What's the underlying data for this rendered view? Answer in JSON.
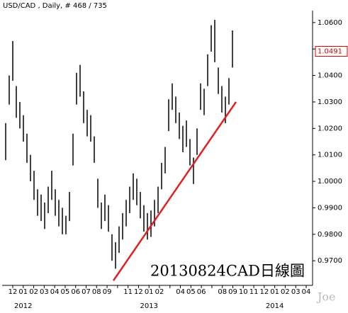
{
  "chart_data": {
    "type": "range-bar",
    "title": "USD/CAD , Daily, # 468 / 735",
    "annotation": "20130824CAD日線圖",
    "watermark": "Joe",
    "color": "#000000",
    "high": [
      1.022,
      1.04,
      1.053,
      1.036,
      1.03,
      1.025,
      1.018,
      1.01,
      1.004,
      0.997,
      0.995,
      0.992,
      0.998,
      1.004,
      0.997,
      0.993,
      0.99,
      0.987,
      0.996,
      1.018,
      1.041,
      1.044,
      1.034,
      1.027,
      1.025,
      1.017,
      1.001,
      0.992,
      0.995,
      0.991,
      0.98,
      0.977,
      0.983,
      0.988,
      0.993,
      0.998,
      1.003,
      1.001,
      0.996,
      0.991,
      0.988,
      0.989,
      0.993,
      0.998,
      1.007,
      1.013,
      1.031,
      1.037,
      1.032,
      1.026,
      1.021,
      1.023,
      1.016,
      1.009,
      1.02,
      1.037,
      1.035,
      1.048,
      1.059,
      1.061,
      1.043,
      1.036,
      1.032,
      1.039,
      1.057
    ],
    "low": [
      1.008,
      1.029,
      1.038,
      1.024,
      1.02,
      1.015,
      1.007,
      1.0,
      0.993,
      0.987,
      0.985,
      0.982,
      0.988,
      0.993,
      0.987,
      0.983,
      0.98,
      0.98,
      0.985,
      1.006,
      1.029,
      1.032,
      1.022,
      1.017,
      1.015,
      1.007,
      0.99,
      0.982,
      0.985,
      0.981,
      0.97,
      0.967,
      0.973,
      0.978,
      0.983,
      0.988,
      0.993,
      0.991,
      0.986,
      0.981,
      0.978,
      0.979,
      0.983,
      0.988,
      0.997,
      1.003,
      1.019,
      1.027,
      1.022,
      1.016,
      1.011,
      1.013,
      1.006,
      0.999,
      1.01,
      1.027,
      1.025,
      1.036,
      1.049,
      1.045,
      1.033,
      1.026,
      1.022,
      1.029,
      1.043
    ],
    "last_price": 1.0491,
    "last_price_color": "#d00000",
    "trendline": {
      "start": 0.9625,
      "end": 1.03,
      "color": "#e02020"
    },
    "ylim": [
      0.9615,
      1.0645
    ],
    "yticks": [
      {
        "value": 0.97,
        "label": "0.9700"
      },
      {
        "value": 0.98,
        "label": "0.9800"
      },
      {
        "value": 0.99,
        "label": "0.9900"
      },
      {
        "value": 1.0,
        "label": "1.0000"
      },
      {
        "value": 1.01,
        "label": "1.0100"
      },
      {
        "value": 1.02,
        "label": "1.0200"
      },
      {
        "value": 1.03,
        "label": "1.0300"
      },
      {
        "value": 1.04,
        "label": "1.0400"
      },
      {
        "value": 1.05,
        "label": "1.0500"
      },
      {
        "value": 1.06,
        "label": "1.0600"
      }
    ],
    "categories": [
      "12",
      "01",
      "02",
      "03",
      "04",
      "05",
      "06",
      "07",
      "08",
      "09",
      null,
      "11",
      "12",
      "01",
      "02",
      null,
      "04",
      "05",
      "06",
      null,
      "08",
      "09",
      "10",
      "11",
      "12",
      "01",
      "02",
      "03",
      "04"
    ],
    "years": [
      "2012",
      "2013",
      "2014"
    ]
  }
}
